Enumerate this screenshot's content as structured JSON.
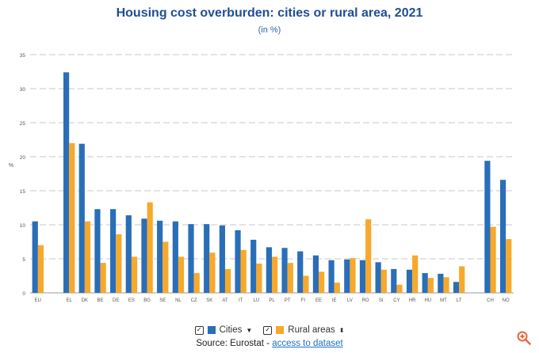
{
  "header": {
    "title": "Housing cost overburden: cities or rural area, 2021",
    "subtitle": "(in %)"
  },
  "chart_data": {
    "type": "bar",
    "title": "Housing cost overburden: cities or rural area, 2021",
    "subtitle": "(in %)",
    "xlabel": "",
    "ylabel": "%",
    "ylim": [
      0,
      35
    ],
    "yticks": [
      0,
      5,
      10,
      15,
      20,
      25,
      30,
      35
    ],
    "grid": true,
    "legend_position": "bottom-center",
    "categories": [
      "EU",
      "",
      "EL",
      "DK",
      "BE",
      "DE",
      "ES",
      "BG",
      "SE",
      "NL",
      "CZ",
      "SK",
      "AT",
      "IT",
      "LU",
      "PL",
      "PT",
      "FI",
      "EE",
      "IE",
      "LV",
      "RO",
      "SI",
      "CY",
      "HR",
      "HU",
      "MT",
      "LT",
      "",
      "CH",
      "NO"
    ],
    "series": [
      {
        "name": "Cities",
        "color": "#2a6eb8",
        "values": [
          10.5,
          null,
          32.4,
          21.9,
          12.3,
          12.3,
          11.4,
          10.9,
          10.6,
          10.5,
          10.1,
          10.1,
          9.9,
          9.2,
          7.8,
          6.7,
          6.6,
          6.1,
          5.5,
          4.8,
          4.9,
          4.8,
          4.5,
          3.5,
          3.4,
          2.9,
          2.8,
          1.6,
          null,
          19.4,
          16.6
        ]
      },
      {
        "name": "Rural areas",
        "color": "#f6a92b",
        "values": [
          7.0,
          null,
          22.0,
          10.5,
          4.4,
          8.6,
          5.3,
          13.3,
          7.5,
          5.3,
          2.9,
          5.9,
          3.5,
          6.3,
          4.3,
          5.3,
          4.4,
          2.5,
          3.1,
          1.5,
          5.1,
          10.8,
          3.4,
          1.2,
          5.5,
          2.2,
          2.3,
          3.9,
          null,
          9.7,
          7.9
        ]
      }
    ]
  },
  "legend": {
    "cities_label": "Cities",
    "rural_label": "Rural areas",
    "checkbox_mark": "✓",
    "cities_arrow": "▼",
    "rural_arrow": "⬍"
  },
  "source": {
    "prefix": "Source: Eurostat - ",
    "link_text": "access to dataset"
  }
}
